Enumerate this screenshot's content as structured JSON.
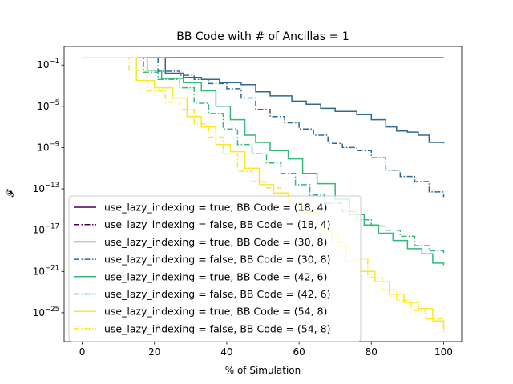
{
  "chart_data": {
    "type": "line",
    "title": "BB Code with # of Ancillas = 1",
    "xlabel": "% of Simulation",
    "ylabel": "𝓕",
    "xlim": [
      -5,
      105
    ],
    "ylim_log10": [
      -27.8,
      0.8
    ],
    "yscale": "log",
    "xticks": [
      0,
      20,
      40,
      60,
      80,
      100
    ],
    "yticks_exponents": [
      -1,
      -5,
      -9,
      -13,
      -17,
      -21,
      -25
    ],
    "legend_location": "lower-left",
    "grid": false,
    "series": [
      {
        "name": "use_lazy_indexing = true, BB Code = (18, 4)",
        "color": "#440154",
        "dash": "solid",
        "points": [
          [
            0,
            -0.3
          ],
          [
            100,
            -0.3
          ]
        ]
      },
      {
        "name": "use_lazy_indexing = false, BB Code = (18, 4)",
        "color": "#440154",
        "dash": "dashdot",
        "points": [
          [
            0,
            -0.3
          ],
          [
            100,
            -0.3
          ]
        ]
      },
      {
        "name": "use_lazy_indexing = true, BB Code = (30, 8)",
        "color": "#31688e",
        "dash": "solid",
        "points": [
          [
            0,
            -0.3
          ],
          [
            21,
            -0.3
          ],
          [
            23,
            -1.8
          ],
          [
            28,
            -2.2
          ],
          [
            33,
            -2.4
          ],
          [
            38,
            -2.7
          ],
          [
            44,
            -2.9
          ],
          [
            48,
            -3.6
          ],
          [
            52,
            -4.0
          ],
          [
            58,
            -4.5
          ],
          [
            62,
            -4.8
          ],
          [
            66,
            -5.2
          ],
          [
            70,
            -5.5
          ],
          [
            76,
            -5.8
          ],
          [
            80,
            -6.3
          ],
          [
            84,
            -7.0
          ],
          [
            87,
            -7.4
          ],
          [
            90,
            -7.5
          ],
          [
            93,
            -7.8
          ],
          [
            96,
            -8.5
          ],
          [
            100,
            -8.6
          ]
        ]
      },
      {
        "name": "use_lazy_indexing = false, BB Code = (30, 8)",
        "color": "#31688e",
        "dash": "dashdot",
        "points": [
          [
            0,
            -0.3
          ],
          [
            19,
            -0.3
          ],
          [
            21,
            -1.6
          ],
          [
            27,
            -2.0
          ],
          [
            31,
            -2.4
          ],
          [
            35,
            -2.8
          ],
          [
            40,
            -3.3
          ],
          [
            44,
            -4.2
          ],
          [
            48,
            -5.3
          ],
          [
            52,
            -6.0
          ],
          [
            56,
            -6.6
          ],
          [
            60,
            -7.2
          ],
          [
            64,
            -7.8
          ],
          [
            68,
            -8.6
          ],
          [
            72,
            -9.0
          ],
          [
            76,
            -9.3
          ],
          [
            80,
            -10.0
          ],
          [
            84,
            -11.2
          ],
          [
            88,
            -11.8
          ],
          [
            92,
            -12.3
          ],
          [
            96,
            -13.3
          ],
          [
            100,
            -13.8
          ]
        ]
      },
      {
        "name": "use_lazy_indexing = true, BB Code = (42, 6)",
        "color": "#35b779",
        "dash": "solid",
        "points": [
          [
            0,
            -0.3
          ],
          [
            16,
            -0.3
          ],
          [
            18,
            -1.5
          ],
          [
            22,
            -2.3
          ],
          [
            28,
            -2.7
          ],
          [
            33,
            -3.5
          ],
          [
            37,
            -5.0
          ],
          [
            41,
            -6.3
          ],
          [
            45,
            -7.8
          ],
          [
            48,
            -8.5
          ],
          [
            52,
            -9.3
          ],
          [
            57,
            -10.1
          ],
          [
            61,
            -11.5
          ],
          [
            65,
            -12.5
          ],
          [
            70,
            -14.0
          ],
          [
            74,
            -15.5
          ],
          [
            78,
            -16.5
          ],
          [
            82,
            -17.3
          ],
          [
            86,
            -18.0
          ],
          [
            90,
            -18.8
          ],
          [
            94,
            -19.3
          ],
          [
            97,
            -20.2
          ],
          [
            100,
            -20.4
          ]
        ]
      },
      {
        "name": "use_lazy_indexing = false, BB Code = (42, 6)",
        "color": "#35b779",
        "dash": "dashdot",
        "points": [
          [
            0,
            -0.3
          ],
          [
            15,
            -0.3
          ],
          [
            17,
            -1.7
          ],
          [
            21,
            -2.4
          ],
          [
            27,
            -3.2
          ],
          [
            31,
            -4.7
          ],
          [
            35,
            -5.7
          ],
          [
            39,
            -7.2
          ],
          [
            43,
            -8.7
          ],
          [
            47,
            -9.6
          ],
          [
            51,
            -10.5
          ],
          [
            55,
            -11.5
          ],
          [
            59,
            -12.6
          ],
          [
            63,
            -13.6
          ],
          [
            67,
            -14.4
          ],
          [
            72,
            -15.2
          ],
          [
            76,
            -16.0
          ],
          [
            80,
            -16.6
          ],
          [
            84,
            -17.0
          ],
          [
            88,
            -17.6
          ],
          [
            92,
            -18.5
          ],
          [
            96,
            -19.0
          ],
          [
            100,
            -19.2
          ]
        ]
      },
      {
        "name": "use_lazy_indexing = true, BB Code = (54, 8)",
        "color": "#fde725",
        "dash": "solid",
        "points": [
          [
            0,
            -0.3
          ],
          [
            14,
            -0.3
          ],
          [
            15,
            -2.5
          ],
          [
            20,
            -3.2
          ],
          [
            25,
            -4.2
          ],
          [
            29,
            -6.0
          ],
          [
            33,
            -7.0
          ],
          [
            37,
            -8.7
          ],
          [
            41,
            -9.4
          ],
          [
            45,
            -11.0
          ],
          [
            49,
            -12.6
          ],
          [
            53,
            -13.4
          ],
          [
            57,
            -14.3
          ],
          [
            61,
            -15.3
          ],
          [
            65,
            -17.0
          ],
          [
            69,
            -18.2
          ],
          [
            73,
            -20.0
          ],
          [
            77,
            -21.0
          ],
          [
            81,
            -22.0
          ],
          [
            85,
            -23.2
          ],
          [
            89,
            -24.0
          ],
          [
            93,
            -24.6
          ],
          [
            97,
            -25.8
          ],
          [
            100,
            -26.6
          ]
        ]
      },
      {
        "name": "use_lazy_indexing = false, BB Code = (54, 8)",
        "color": "#fde725",
        "dash": "dashdot",
        "points": [
          [
            0,
            -0.3
          ],
          [
            11,
            -0.3
          ],
          [
            13,
            -1.5
          ],
          [
            18,
            -3.5
          ],
          [
            23,
            -4.6
          ],
          [
            27,
            -5.3
          ],
          [
            31,
            -6.7
          ],
          [
            35,
            -8.0
          ],
          [
            39,
            -9.6
          ],
          [
            43,
            -11.3
          ],
          [
            47,
            -12.3
          ],
          [
            51,
            -12.9
          ],
          [
            55,
            -13.7
          ],
          [
            59,
            -15.0
          ],
          [
            63,
            -16.2
          ],
          [
            67,
            -17.4
          ],
          [
            71,
            -18.6
          ],
          [
            75,
            -19.8
          ],
          [
            79,
            -21.6
          ],
          [
            83,
            -22.8
          ],
          [
            87,
            -23.8
          ],
          [
            91,
            -24.8
          ],
          [
            95,
            -25.6
          ],
          [
            100,
            -27.0
          ]
        ]
      }
    ]
  }
}
